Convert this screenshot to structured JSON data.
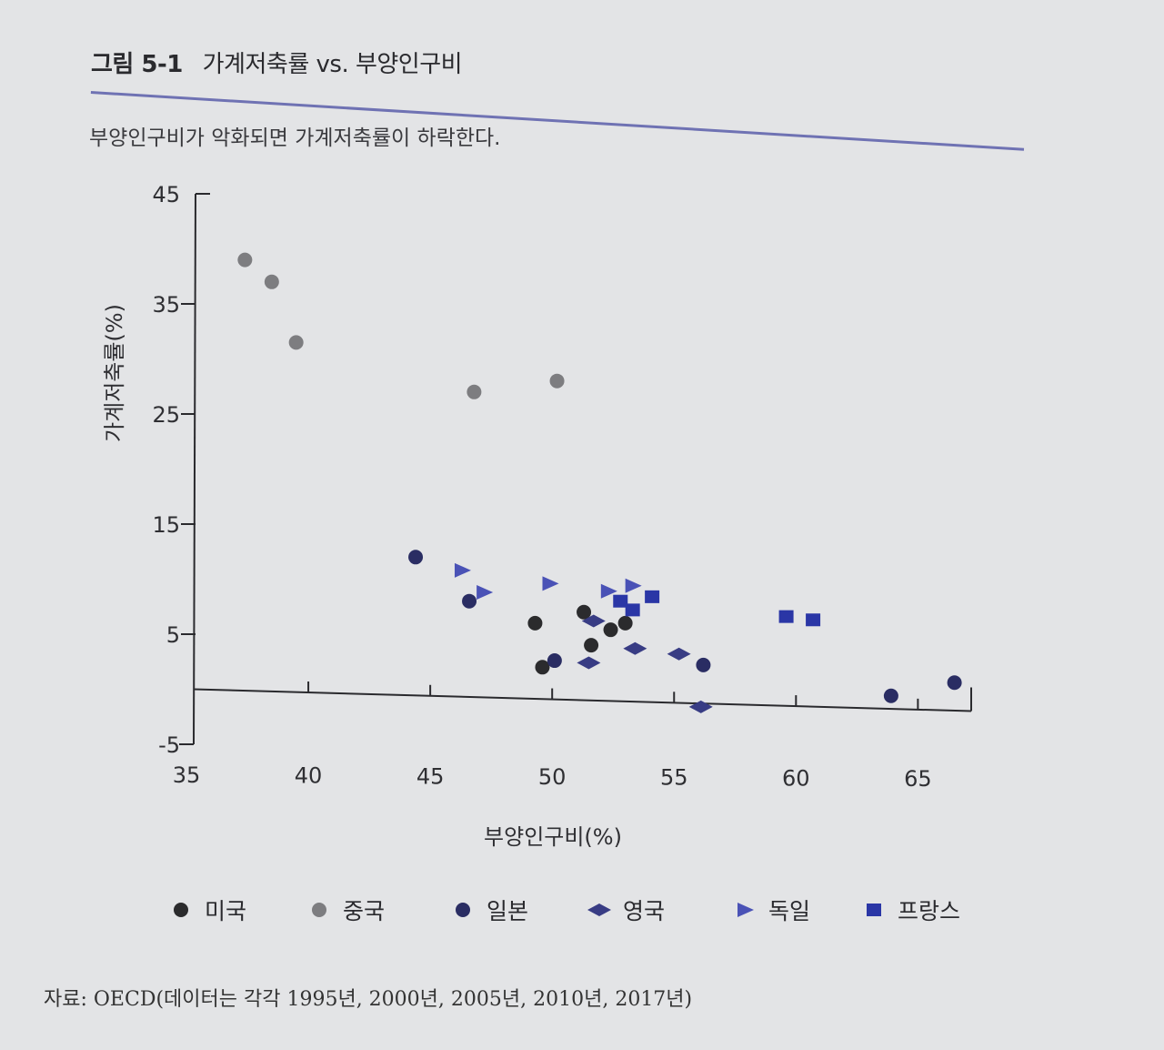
{
  "figure": {
    "number": "그림 5-1",
    "title": "가계저축률 vs. 부양인구비",
    "subtitle": "부양인구비가 악화되면 가계저축률이 하락한다.",
    "source": "자료: OECD(데이터는 각각 1995년, 2000년, 2005년, 2010년, 2017년)"
  },
  "colors": {
    "미국": "#2b2b2d",
    "중국": "#7d7d80",
    "일본": "#2a2d63",
    "영국": "#383c84",
    "독일": "#4a52b6",
    "프랑스": "#2a36a6"
  },
  "chart_data": {
    "type": "scatter",
    "xlabel": "부양인구비(%)",
    "ylabel": "가계저축률(%)",
    "xlim": [
      35,
      67
    ],
    "ylim": [
      -5,
      45
    ],
    "xticks": [
      "35",
      "40",
      "45",
      "50",
      "55",
      "60",
      "65"
    ],
    "yticks": [
      "45",
      "35",
      "25",
      "15",
      "5",
      "-5"
    ],
    "grid": false,
    "legend": "bottom",
    "series": [
      {
        "name": "미국",
        "marker": "circle",
        "points": [
          [
            49.3,
            6
          ],
          [
            49.6,
            2
          ],
          [
            51.3,
            7
          ],
          [
            51.6,
            4
          ],
          [
            52.4,
            5.4
          ],
          [
            53,
            6
          ]
        ]
      },
      {
        "name": "중국",
        "marker": "circle",
        "points": [
          [
            37.4,
            39
          ],
          [
            38.5,
            37
          ],
          [
            39.5,
            31.5
          ],
          [
            46.8,
            27
          ],
          [
            50.2,
            28
          ]
        ]
      },
      {
        "name": "일본",
        "marker": "circle",
        "points": [
          [
            44.4,
            12
          ],
          [
            46.6,
            8
          ],
          [
            50.1,
            2.6
          ],
          [
            56.2,
            2.2
          ],
          [
            63.9,
            -0.6
          ],
          [
            66.5,
            0.6
          ]
        ]
      },
      {
        "name": "영국",
        "marker": "diamond",
        "points": [
          [
            51.5,
            2.4
          ],
          [
            51.7,
            6.2
          ],
          [
            53.4,
            3.7
          ],
          [
            55.2,
            3.2
          ],
          [
            56.1,
            -1.6
          ]
        ]
      },
      {
        "name": "독일",
        "marker": "triangle",
        "points": [
          [
            46.3,
            10.8
          ],
          [
            47.2,
            8.8
          ],
          [
            49.9,
            9.6
          ],
          [
            52.3,
            8.9
          ],
          [
            53.3,
            9.4
          ]
        ]
      },
      {
        "name": "프랑스",
        "marker": "square",
        "points": [
          [
            52.8,
            8
          ],
          [
            53.3,
            7.2
          ],
          [
            54.1,
            8.4
          ],
          [
            59.6,
            6.6
          ],
          [
            60.7,
            6.3
          ]
        ]
      }
    ]
  }
}
